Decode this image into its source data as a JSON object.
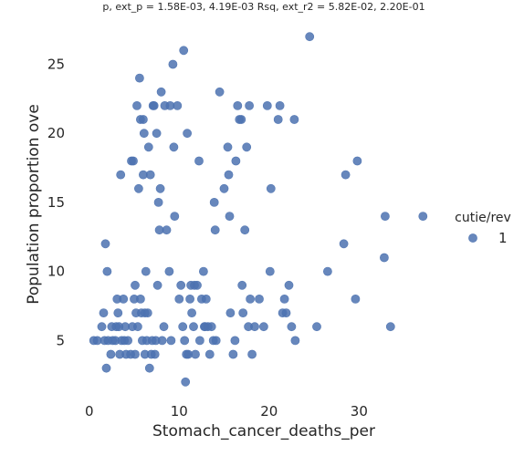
{
  "chart_data": {
    "type": "scatter",
    "title": "p, ext_p = 1.58E-03, 4.19E-03 Rsq, ext_r2 = 5.82E-02, 2.20E-01",
    "xlabel": "Stomach_cancer_deaths_per",
    "ylabel": "Population proportion ove",
    "xlim": [
      -1.8,
      39.2
    ],
    "ylim": [
      0.6,
      28.2
    ],
    "xticks": [
      0,
      10,
      20,
      30
    ],
    "yticks": [
      5,
      10,
      15,
      20,
      25
    ],
    "grid": false,
    "legend": {
      "title": "cutie/rev",
      "placement": "right",
      "entries": [
        "1"
      ]
    },
    "color": "#4c72b0",
    "series": [
      {
        "name": "1",
        "points": [
          [
            0.5,
            5
          ],
          [
            0.9,
            5
          ],
          [
            1.4,
            6
          ],
          [
            1.6,
            7
          ],
          [
            1.7,
            5
          ],
          [
            1.8,
            12
          ],
          [
            1.9,
            3
          ],
          [
            2.0,
            10
          ],
          [
            2.1,
            5
          ],
          [
            2.4,
            4
          ],
          [
            2.5,
            6
          ],
          [
            2.6,
            5
          ],
          [
            2.9,
            5
          ],
          [
            3.0,
            6
          ],
          [
            3.1,
            8
          ],
          [
            3.2,
            7
          ],
          [
            3.3,
            6
          ],
          [
            3.4,
            4
          ],
          [
            3.5,
            17
          ],
          [
            3.6,
            5
          ],
          [
            3.8,
            8
          ],
          [
            3.9,
            5
          ],
          [
            4.0,
            6
          ],
          [
            4.1,
            4
          ],
          [
            4.3,
            5
          ],
          [
            4.6,
            4
          ],
          [
            4.7,
            18
          ],
          [
            4.8,
            6
          ],
          [
            4.9,
            18
          ],
          [
            5.0,
            8
          ],
          [
            5.1,
            9
          ],
          [
            5.1,
            4
          ],
          [
            5.2,
            7
          ],
          [
            5.3,
            22
          ],
          [
            5.4,
            6
          ],
          [
            5.5,
            16
          ],
          [
            5.6,
            24
          ],
          [
            5.7,
            8
          ],
          [
            5.7,
            21
          ],
          [
            5.8,
            7
          ],
          [
            5.9,
            5
          ],
          [
            6.0,
            21
          ],
          [
            6.0,
            17
          ],
          [
            6.1,
            20
          ],
          [
            6.2,
            7
          ],
          [
            6.2,
            4
          ],
          [
            6.3,
            10
          ],
          [
            6.4,
            5
          ],
          [
            6.5,
            7
          ],
          [
            6.6,
            19
          ],
          [
            6.7,
            3
          ],
          [
            6.8,
            17
          ],
          [
            6.9,
            4
          ],
          [
            7.0,
            5
          ],
          [
            7.1,
            22
          ],
          [
            7.2,
            22
          ],
          [
            7.3,
            4
          ],
          [
            7.4,
            5
          ],
          [
            7.5,
            20
          ],
          [
            7.6,
            9
          ],
          [
            7.7,
            15
          ],
          [
            7.8,
            13
          ],
          [
            7.9,
            16
          ],
          [
            8.0,
            23
          ],
          [
            8.1,
            5
          ],
          [
            8.3,
            6
          ],
          [
            8.4,
            22
          ],
          [
            8.6,
            13
          ],
          [
            8.9,
            10
          ],
          [
            9.0,
            22
          ],
          [
            9.1,
            5
          ],
          [
            9.3,
            25
          ],
          [
            9.4,
            19
          ],
          [
            9.5,
            14
          ],
          [
            9.8,
            22
          ],
          [
            10.0,
            8
          ],
          [
            10.2,
            9
          ],
          [
            10.4,
            6
          ],
          [
            10.5,
            26
          ],
          [
            10.6,
            5
          ],
          [
            10.7,
            2
          ],
          [
            10.8,
            4
          ],
          [
            10.9,
            20
          ],
          [
            11.0,
            4
          ],
          [
            11.2,
            8
          ],
          [
            11.3,
            9
          ],
          [
            11.4,
            7
          ],
          [
            11.6,
            6
          ],
          [
            11.7,
            9
          ],
          [
            11.8,
            4
          ],
          [
            12.0,
            9
          ],
          [
            12.2,
            18
          ],
          [
            12.3,
            5
          ],
          [
            12.5,
            8
          ],
          [
            12.7,
            10
          ],
          [
            12.8,
            6
          ],
          [
            12.9,
            6
          ],
          [
            13.0,
            8
          ],
          [
            13.2,
            6
          ],
          [
            13.4,
            4
          ],
          [
            13.6,
            6
          ],
          [
            13.8,
            5
          ],
          [
            13.9,
            15
          ],
          [
            14.0,
            13
          ],
          [
            14.1,
            5
          ],
          [
            14.5,
            23
          ],
          [
            15.0,
            16
          ],
          [
            15.4,
            19
          ],
          [
            15.5,
            17
          ],
          [
            15.6,
            14
          ],
          [
            15.7,
            7
          ],
          [
            16.0,
            4
          ],
          [
            16.2,
            5
          ],
          [
            16.3,
            18
          ],
          [
            16.5,
            22
          ],
          [
            16.7,
            21
          ],
          [
            16.9,
            21
          ],
          [
            17.0,
            9
          ],
          [
            17.1,
            7
          ],
          [
            17.3,
            13
          ],
          [
            17.5,
            19
          ],
          [
            17.7,
            6
          ],
          [
            17.8,
            22
          ],
          [
            17.9,
            8
          ],
          [
            18.1,
            4
          ],
          [
            18.4,
            6
          ],
          [
            18.9,
            8
          ],
          [
            19.4,
            6
          ],
          [
            19.8,
            22
          ],
          [
            20.1,
            10
          ],
          [
            20.2,
            16
          ],
          [
            21.0,
            21
          ],
          [
            21.2,
            22
          ],
          [
            21.5,
            7
          ],
          [
            21.7,
            8
          ],
          [
            21.9,
            7
          ],
          [
            22.2,
            9
          ],
          [
            22.5,
            6
          ],
          [
            22.8,
            21
          ],
          [
            22.9,
            5
          ],
          [
            24.5,
            27
          ],
          [
            25.3,
            6
          ],
          [
            26.5,
            10
          ],
          [
            28.3,
            12
          ],
          [
            28.5,
            17
          ],
          [
            29.6,
            8
          ],
          [
            29.8,
            18
          ],
          [
            32.8,
            11
          ],
          [
            32.9,
            14
          ],
          [
            33.5,
            6
          ],
          [
            37.1,
            14
          ]
        ]
      }
    ]
  }
}
